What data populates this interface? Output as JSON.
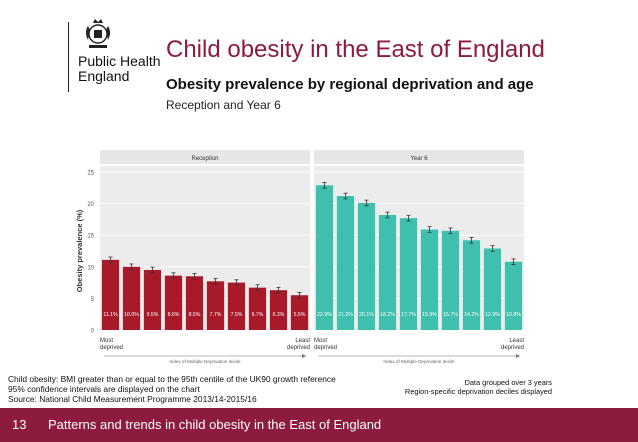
{
  "logo": {
    "line1": "Public Health",
    "line2": "England"
  },
  "header": {
    "title": "Child obesity in the East of England",
    "subtitle": "Obesity prevalence by regional deprivation and age",
    "subtitle2": "Reception and Year 6"
  },
  "chart_data": {
    "type": "bar",
    "ylabel": "Obesity prevalence (%)",
    "ylim": [
      0,
      25
    ],
    "yticks": [
      0,
      5,
      10,
      15,
      20,
      25
    ],
    "xlabel": "Index of Multiple Deprivation decile",
    "xmin_label": [
      "Most",
      "deprived"
    ],
    "xmax_label": [
      "Least",
      "deprived"
    ],
    "panels": [
      {
        "name": "Reception",
        "color": "#a8192a",
        "values": [
          11.1,
          10.0,
          9.5,
          8.6,
          8.5,
          7.7,
          7.5,
          6.7,
          6.3,
          5.5
        ],
        "labels": [
          "11.1%",
          "10.0%",
          "9.5%",
          "8.6%",
          "8.5%",
          "7.7%",
          "7.5%",
          "6.7%",
          "6.3%",
          "5.5%"
        ]
      },
      {
        "name": "Year 6",
        "color": "#3fbfad",
        "values": [
          22.9,
          21.2,
          20.1,
          18.2,
          17.7,
          15.9,
          15.7,
          14.2,
          12.9,
          10.8
        ],
        "labels": [
          "22.9%",
          "21.2%",
          "20.1%",
          "18.2%",
          "17.7%",
          "15.9%",
          "15.7%",
          "14.2%",
          "12.9%",
          "10.8%"
        ]
      }
    ]
  },
  "notes": {
    "left": [
      "Child obesity: BMI greater than or equal to the 95th centile of the UK90 growth reference",
      "95% confidence intervals are displayed on the chart",
      "Source: National Child Measurement Programme 2013/14-2015/16"
    ],
    "right": [
      "Data grouped over 3 years",
      "Region-specific deprivation deciles displayed"
    ]
  },
  "footer": {
    "page_number": "13",
    "text": "Patterns and trends in child obesity in the East of England"
  }
}
